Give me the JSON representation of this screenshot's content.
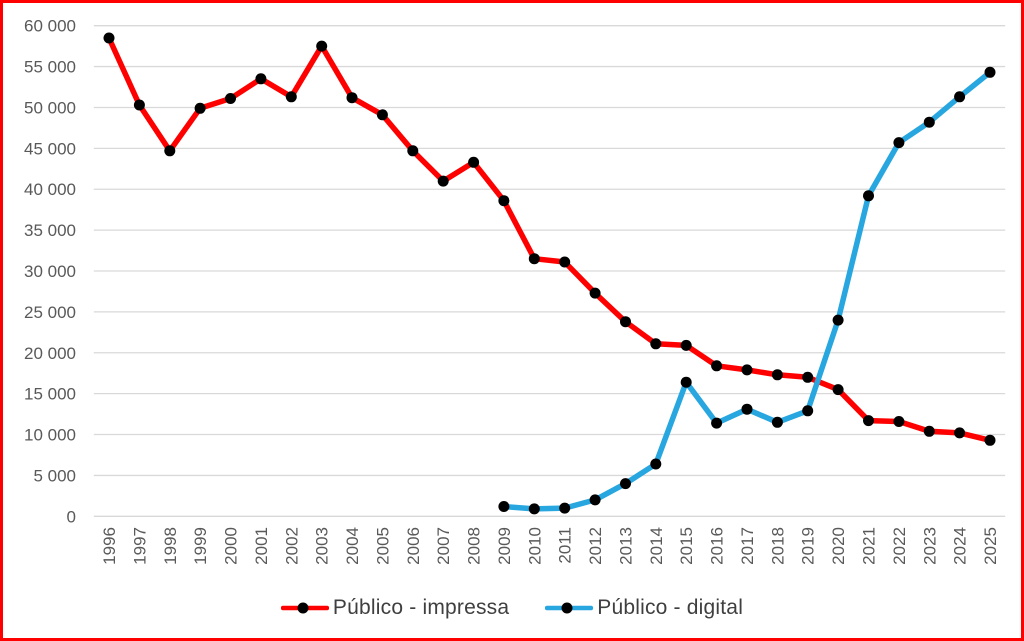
{
  "window": {
    "background": "#FFFFFF",
    "border_color": "#FF0000"
  },
  "legend": {
    "position": "bottom",
    "items": [
      {
        "label": "Público - impressa",
        "color": "#FF0000"
      },
      {
        "label": "Público - digital",
        "color": "#27A6DF"
      }
    ]
  },
  "chart_data": {
    "type": "line",
    "title": "",
    "xlabel": "",
    "ylabel": "",
    "grid": true,
    "legend_position": "bottom",
    "categories": [
      "1996",
      "1997",
      "1998",
      "1999",
      "2000",
      "2001",
      "2002",
      "2003",
      "2004",
      "2005",
      "2006",
      "2007",
      "2008",
      "2009",
      "2010",
      "2011",
      "2012",
      "2013",
      "2014",
      "2015",
      "2016",
      "2017",
      "2018",
      "2019",
      "2020",
      "2021",
      "2022",
      "2023",
      "2024",
      "2025"
    ],
    "series": [
      {
        "name": "Público - impressa",
        "color": "#FF0000",
        "values": [
          58500,
          50300,
          44700,
          49900,
          51100,
          53500,
          51300,
          57500,
          51200,
          49100,
          44700,
          41000,
          43300,
          38600,
          31500,
          31100,
          27300,
          23800,
          21100,
          20900,
          18400,
          17900,
          17300,
          17000,
          15500,
          11700,
          11600,
          10400,
          10200,
          9300
        ]
      },
      {
        "name": "Público - digital",
        "color": "#27A6DF",
        "values": [
          null,
          null,
          null,
          null,
          null,
          null,
          null,
          null,
          null,
          null,
          null,
          null,
          null,
          1200,
          900,
          1000,
          2000,
          4000,
          6400,
          16400,
          11400,
          13100,
          11500,
          12900,
          24000,
          39200,
          45700,
          48200,
          51300,
          54300
        ]
      }
    ],
    "ylim": [
      0,
      60000
    ],
    "y_tick_step": 5000,
    "y_tick_labels": [
      "0",
      "5 000",
      "10 000",
      "15 000",
      "20 000",
      "25 000",
      "30 000",
      "35 000",
      "40 000",
      "45 000",
      "50 000",
      "55 000",
      "60 000"
    ],
    "marker_color": "#000000",
    "gridline_color": "#D9D9D9",
    "axis_label_color": "#595959"
  }
}
